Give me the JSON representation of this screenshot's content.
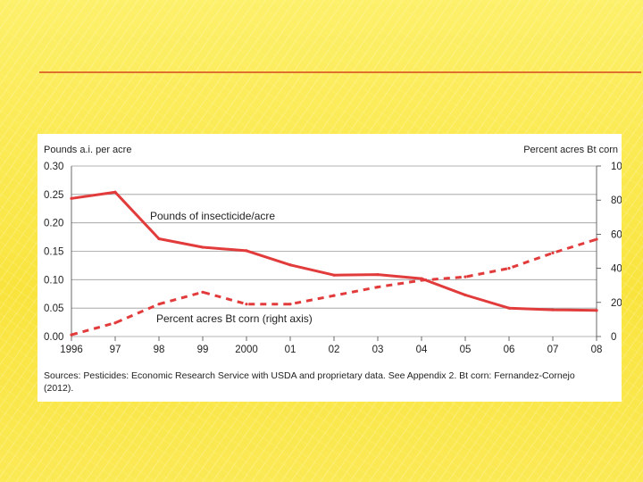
{
  "slide": {
    "accent_color": "#e0702e",
    "background_color": "#fbe84a"
  },
  "chart_data": {
    "type": "line",
    "left_axis_label": "Pounds a.i. per acre",
    "right_axis_label": "Percent acres Bt corn",
    "categories": [
      "1996",
      "97",
      "98",
      "99",
      "2000",
      "01",
      "02",
      "03",
      "04",
      "05",
      "06",
      "07",
      "08"
    ],
    "ylim_left": [
      0,
      0.3
    ],
    "yticks_left": [
      "0.00",
      "0.05",
      "0.10",
      "0.15",
      "0.20",
      "0.25",
      "0.30"
    ],
    "ylim_right": [
      0,
      100
    ],
    "yticks_right": [
      "0",
      "20",
      "40",
      "60",
      "80",
      "100"
    ],
    "grid": true,
    "series": [
      {
        "name": "Pounds of insecticide/acre",
        "axis": "left",
        "style": "solid",
        "color": "#e23b3b",
        "values": [
          0.243,
          0.254,
          0.172,
          0.157,
          0.151,
          0.126,
          0.108,
          0.109,
          0.102,
          0.073,
          0.05,
          0.047,
          0.046
        ]
      },
      {
        "name": "Percent acres Bt corn (right axis)",
        "axis": "right",
        "style": "dashed",
        "color": "#e23b3b",
        "values": [
          1,
          8,
          19,
          26,
          19,
          19,
          24,
          29,
          33,
          35,
          40,
          49,
          57
        ]
      }
    ],
    "annotations": {
      "solid_label": "Pounds of insecticide/acre",
      "dashed_label": "Percent acres Bt corn (right axis)"
    },
    "source": "Sources: Pesticides: Economic Research Service with USDA and proprietary data. See Appendix 2. Bt corn: Fernandez-Cornejo (2012)."
  }
}
